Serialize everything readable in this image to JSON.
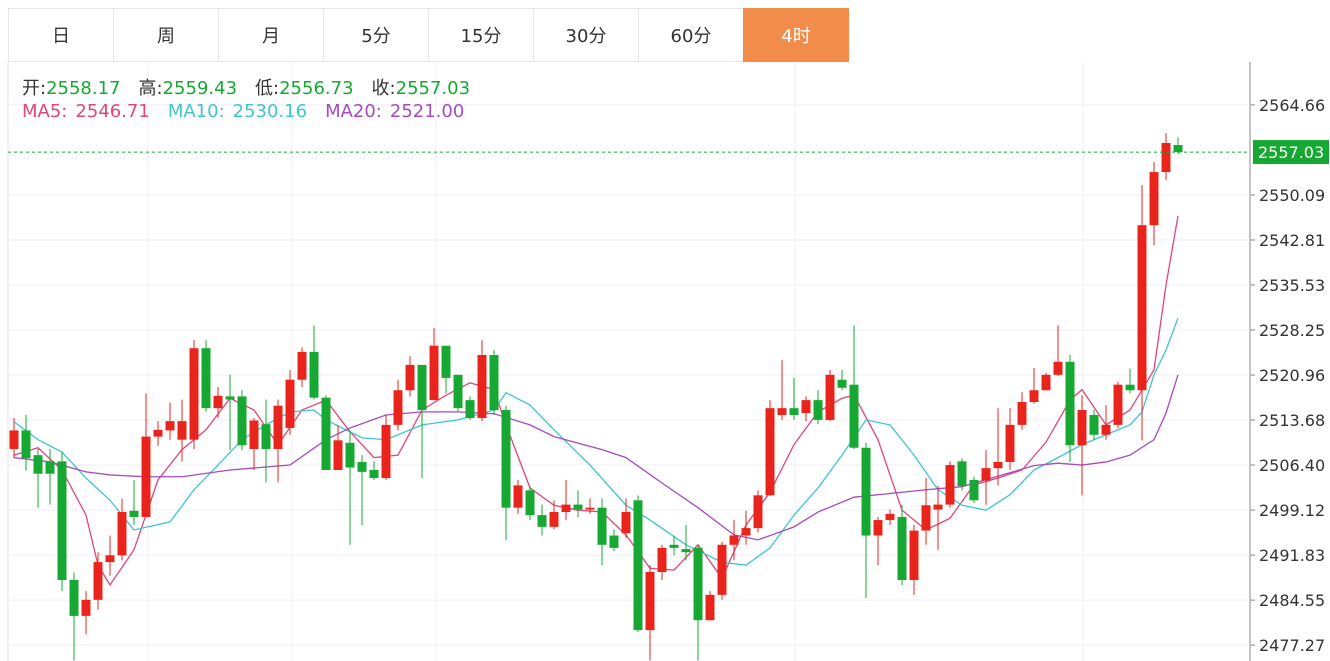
{
  "chart_data": {
    "type": "candlestick",
    "tabs": [
      "日",
      "周",
      "月",
      "5分",
      "15分",
      "30分",
      "60分",
      "4时"
    ],
    "active_tab": 7,
    "ohlc_labels": [
      "开:",
      "高:",
      "低:",
      "收:"
    ],
    "up_color": "#e8241c",
    "down_color": "#16a832",
    "open": [
      2509,
      2512,
      2508,
      2507,
      2507,
      2487.8,
      2482,
      2484.6,
      2490.7,
      2491.8,
      2499,
      2498,
      2511,
      2512,
      2510.5,
      2510.5,
      2525.3,
      2515.6,
      2517.5,
      2517.5,
      2509,
      2513,
      2509,
      2512.4,
      2520.2,
      2524.7,
      2517.3,
      2505.6,
      2510,
      2506.9,
      2505.6,
      2504.3,
      2512.9,
      2518.5,
      2522.6,
      2516.9,
      2525.7,
      2521,
      2516.9,
      2514,
      2524.2,
      2515.3,
      2499.5,
      2502.3,
      2498.3,
      2496.4,
      2498.8,
      2500,
      2499.2,
      2499.5,
      2495,
      2495.4,
      2500.7,
      2479.7,
      2489.1,
      2493.5,
      2492.8,
      2493,
      2481.3,
      2485.4,
      2493.5,
      2495,
      2496.2,
      2501.5,
      2514.5,
      2515.6,
      2514.8,
      2516.9,
      2513.7,
      2520.2,
      2519.4,
      2509.2,
      2495,
      2497.5,
      2498,
      2487.8,
      2495.8,
      2499.2,
      2500,
      2507,
      2504,
      2503.9,
      2505.9,
      2506.9,
      2512.9,
      2516.6,
      2518.5,
      2521,
      2523.1,
      2509.6,
      2514.5,
      2511.3,
      2512.9,
      2519.4,
      2518.5,
      2545.2,
      2553.8,
      2558.17
    ],
    "high": [
      2514,
      2514.5,
      2509,
      2509,
      2508.5,
      2489,
      2486,
      2492.3,
      2495,
      2501,
      2504,
      2518,
      2513.5,
      2516.5,
      2517,
      2526.6,
      2526.6,
      2519,
      2521,
      2518.5,
      2514,
      2517,
      2517,
      2521.8,
      2525.4,
      2529,
      2517.7,
      2512.9,
      2512,
      2508,
      2507,
      2514.5,
      2520.2,
      2524,
      2522.6,
      2528.6,
      2525.7,
      2521,
      2517.5,
      2526.6,
      2525,
      2516,
      2504,
      2503,
      2500,
      2500.7,
      2504,
      2502.3,
      2501,
      2501,
      2496,
      2501,
      2501.5,
      2490.2,
      2493.5,
      2495,
      2496.7,
      2493.5,
      2486,
      2494,
      2497.5,
      2499,
      2502.3,
      2516.9,
      2523.4,
      2520.5,
      2517.5,
      2518.5,
      2521.8,
      2521.8,
      2529,
      2510,
      2498,
      2499.2,
      2500,
      2496.7,
      2504.3,
      2503,
      2507,
      2507.5,
      2504.5,
      2508.8,
      2515.6,
      2515.6,
      2518.2,
      2522.1,
      2521.3,
      2529,
      2524.2,
      2517.7,
      2515.3,
      2516.1,
      2519.9,
      2522,
      2551.7,
      2555.4,
      2560.1,
      2559.43
    ],
    "low": [
      2507.5,
      2505.5,
      2499.5,
      2500,
      2486,
      2474.8,
      2479,
      2483,
      2488.5,
      2491,
      2496.7,
      2498,
      2509.5,
      2510.5,
      2507,
      2509,
      2515,
      2514,
      2508.8,
      2508.8,
      2505.6,
      2503.6,
      2503.6,
      2511.3,
      2519,
      2517,
      2505.6,
      2505.6,
      2493.5,
      2496.7,
      2504,
      2504,
      2512,
      2517.5,
      2504.3,
      2516.9,
      2518,
      2515,
      2513.7,
      2513.5,
      2514.5,
      2494.3,
      2498.5,
      2497.5,
      2495,
      2496,
      2497.5,
      2498,
      2498.5,
      2490.2,
      2492.5,
      2494.6,
      2479.4,
      2474.8,
      2487.8,
      2491.8,
      2491,
      2474.8,
      2481.3,
      2484.6,
      2491,
      2493.5,
      2495.5,
      2501.5,
      2513.7,
      2513.7,
      2513.5,
      2513,
      2513.5,
      2518.5,
      2509,
      2484.9,
      2490.2,
      2496.7,
      2487,
      2485.4,
      2493.5,
      2492.7,
      2499.5,
      2502.3,
      2500.3,
      2500,
      2503.1,
      2505.6,
      2512.1,
      2516.3,
      2518.5,
      2520.8,
      2506.9,
      2501.5,
      2510.5,
      2510.5,
      2512.4,
      2518,
      2510.4,
      2542,
      2552.5,
      2556.73
    ],
    "close": [
      2512,
      2507.5,
      2505,
      2505,
      2487.8,
      2482,
      2484.6,
      2490.7,
      2491.8,
      2498.8,
      2498,
      2511,
      2512.1,
      2513.5,
      2513.5,
      2525.3,
      2515.6,
      2517.6,
      2517,
      2509.6,
      2513.6,
      2509,
      2516,
      2520.2,
      2524.7,
      2517.3,
      2505.6,
      2510.4,
      2506,
      2505.3,
      2504.3,
      2512.9,
      2518.5,
      2522.6,
      2515.3,
      2525.7,
      2520.5,
      2515.6,
      2514,
      2524.2,
      2515.3,
      2499.5,
      2503.1,
      2498.3,
      2496.4,
      2498.8,
      2500,
      2499.2,
      2499.5,
      2493.5,
      2493,
      2498.8,
      2479.7,
      2489.1,
      2493,
      2493,
      2492.3,
      2481.3,
      2485.4,
      2493.5,
      2495,
      2496.2,
      2501.5,
      2515.6,
      2515.6,
      2514.5,
      2516.9,
      2513.7,
      2521,
      2518.9,
      2509.2,
      2495,
      2497.5,
      2498.5,
      2487.8,
      2495.8,
      2499.9,
      2500,
      2506.4,
      2503,
      2500.7,
      2505.9,
      2506.9,
      2512.9,
      2516.6,
      2518.5,
      2521,
      2523.1,
      2509.6,
      2515.3,
      2511.3,
      2512.9,
      2519.4,
      2518.5,
      2545.2,
      2553.8,
      2558.5,
      2557.03
    ],
    "series": [
      {
        "name": "MA5:",
        "color": "#e0457b",
        "x": [
          0,
          2,
          4,
          6,
          7,
          8,
          10,
          12,
          14,
          16,
          18,
          20,
          22,
          24,
          26,
          28,
          30,
          32,
          34,
          36,
          38,
          40,
          41,
          43,
          45,
          47,
          49,
          51,
          53,
          55,
          57,
          59,
          61,
          63,
          65,
          67,
          69,
          70,
          72,
          74,
          76,
          78,
          80,
          82,
          84,
          86,
          88,
          89,
          91,
          93,
          95,
          96,
          97
        ],
        "values": [
          2508.0,
          2509.2,
          2505.6,
          2498.3,
          2490.2,
          2487.0,
          2492.7,
          2504.0,
          2508.9,
          2512.1,
          2517.2,
          2515.3,
          2509.7,
          2515.3,
          2516.9,
          2511.8,
          2507.6,
          2508.0,
          2515.3,
          2517.7,
          2519.7,
          2518.6,
          2512.9,
          2502.7,
          2499.9,
          2499.1,
          2498.8,
          2495.1,
          2489.7,
          2489.4,
          2493.5,
          2488.1,
          2496.7,
          2502.0,
          2509.7,
          2515.0,
          2517.2,
          2517.7,
          2510.5,
          2499.1,
          2495.9,
          2497.8,
          2503.2,
          2504.3,
          2505.6,
          2510.1,
          2516.9,
          2518.6,
          2512.9,
          2515.3,
          2521.8,
          2535.5,
          2546.71
        ]
      },
      {
        "name": "MA10:",
        "color": "#3ec5d0",
        "x": [
          0,
          2,
          4,
          6,
          8,
          10,
          13,
          15,
          17,
          19,
          21,
          23,
          25,
          26,
          29,
          31,
          34,
          37,
          40,
          41,
          43,
          45,
          48,
          51,
          53,
          56,
          59,
          61,
          63,
          65,
          67,
          69,
          71,
          73,
          75,
          77,
          79,
          81,
          83,
          85,
          87,
          89,
          91,
          93,
          94,
          95,
          96,
          97
        ],
        "values": [
          2513.4,
          2510.5,
          2508.5,
          2504.3,
          2500.7,
          2495.9,
          2497.2,
          2502.4,
          2506.4,
          2510.5,
          2512.9,
          2515.0,
          2515.3,
          2513.7,
          2510.8,
          2510.5,
          2512.9,
          2513.7,
          2515.3,
          2518.1,
          2516.1,
          2512.1,
          2506.4,
          2499.9,
          2497.5,
          2493.5,
          2490.7,
          2490.2,
          2493.0,
          2498.3,
          2502.7,
          2508.0,
          2513.7,
          2512.9,
          2508.0,
          2502.4,
          2499.9,
          2499.1,
          2501.6,
          2505.6,
          2507.6,
          2509.7,
          2511.3,
          2512.9,
          2515.0,
          2521.0,
          2525.0,
          2530.16
        ]
      },
      {
        "name": "MA20:",
        "color": "#a64bbd",
        "x": [
          0,
          3,
          6,
          8,
          11,
          14,
          18,
          23,
          26,
          28,
          31,
          34,
          37,
          40,
          43,
          45,
          49,
          51,
          54,
          57,
          60,
          62,
          65,
          67,
          70,
          74,
          76,
          79,
          82,
          85,
          87,
          89,
          91,
          93,
          95,
          96,
          97
        ],
        "values": [
          2507.6,
          2506.9,
          2505.3,
          2504.8,
          2504.5,
          2504.5,
          2505.6,
          2506.4,
          2510.5,
          2512.4,
          2514.5,
          2515.0,
          2515.0,
          2514.7,
          2512.9,
          2511.0,
          2508.9,
          2507.6,
          2503.5,
          2499.5,
          2495.1,
          2494.3,
          2496.4,
          2498.8,
          2501.2,
          2502.0,
          2502.4,
          2502.9,
          2504.6,
          2506.3,
          2506.7,
          2506.4,
          2506.9,
          2508.0,
          2510.5,
          2514.8,
          2521.0
        ],
        "value_labels": [
          null,
          null,
          null,
          null,
          null,
          null,
          null,
          null,
          null,
          null,
          null,
          null,
          null,
          null,
          null,
          null,
          null,
          null,
          null,
          null,
          null,
          null,
          null,
          null,
          null,
          null,
          null,
          null,
          null,
          null,
          null,
          null,
          null,
          null,
          null,
          null,
          "2521.00"
        ]
      }
    ],
    "ylim": [
      2474.7,
      2571.6
    ],
    "yticks": [
      2564.66,
      2550.09,
      2542.81,
      2535.53,
      2528.25,
      2520.96,
      2513.68,
      {
        "value": 2506.4,
        "label": "2506.40"
      },
      2499.12,
      2491.83,
      2484.55,
      2477.27
    ],
    "grid": true,
    "last_price_line": true
  }
}
